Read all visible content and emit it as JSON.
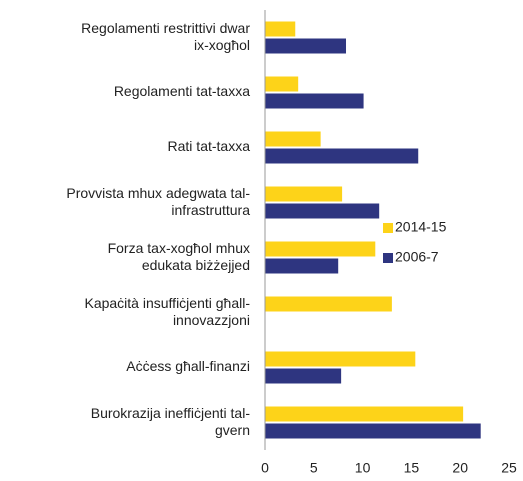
{
  "chart_data": {
    "type": "barh",
    "categories": [
      "Regolamenti restrittivi dwar\nix-xogħol",
      "Regolamenti tat-taxxa",
      "Rati tat-taxxa",
      "Provvista mhux adegwata tal-\ninfrastruttura",
      "Forza tax-xogħol mhux\nedukata biżżejjed",
      "Kapaċità insuffiċjenti għall-\ninnovazzjoni",
      "Aċċess għall-finanzi",
      "Burokrazija ineffiċjenti tal-\ngvern"
    ],
    "series": [
      {
        "name": "2014-15",
        "color": "#fdd319",
        "values": [
          3.1,
          3.4,
          5.7,
          7.9,
          11.3,
          13.0,
          15.4,
          20.3
        ]
      },
      {
        "name": "2006-7",
        "color": "#2e3580",
        "values": [
          8.3,
          10.1,
          15.7,
          11.7,
          7.5,
          null,
          7.8,
          22.1
        ]
      }
    ],
    "xlim": [
      0,
      25
    ],
    "xticks": [
      0,
      5,
      10,
      15,
      20,
      25
    ],
    "legend": "right"
  }
}
